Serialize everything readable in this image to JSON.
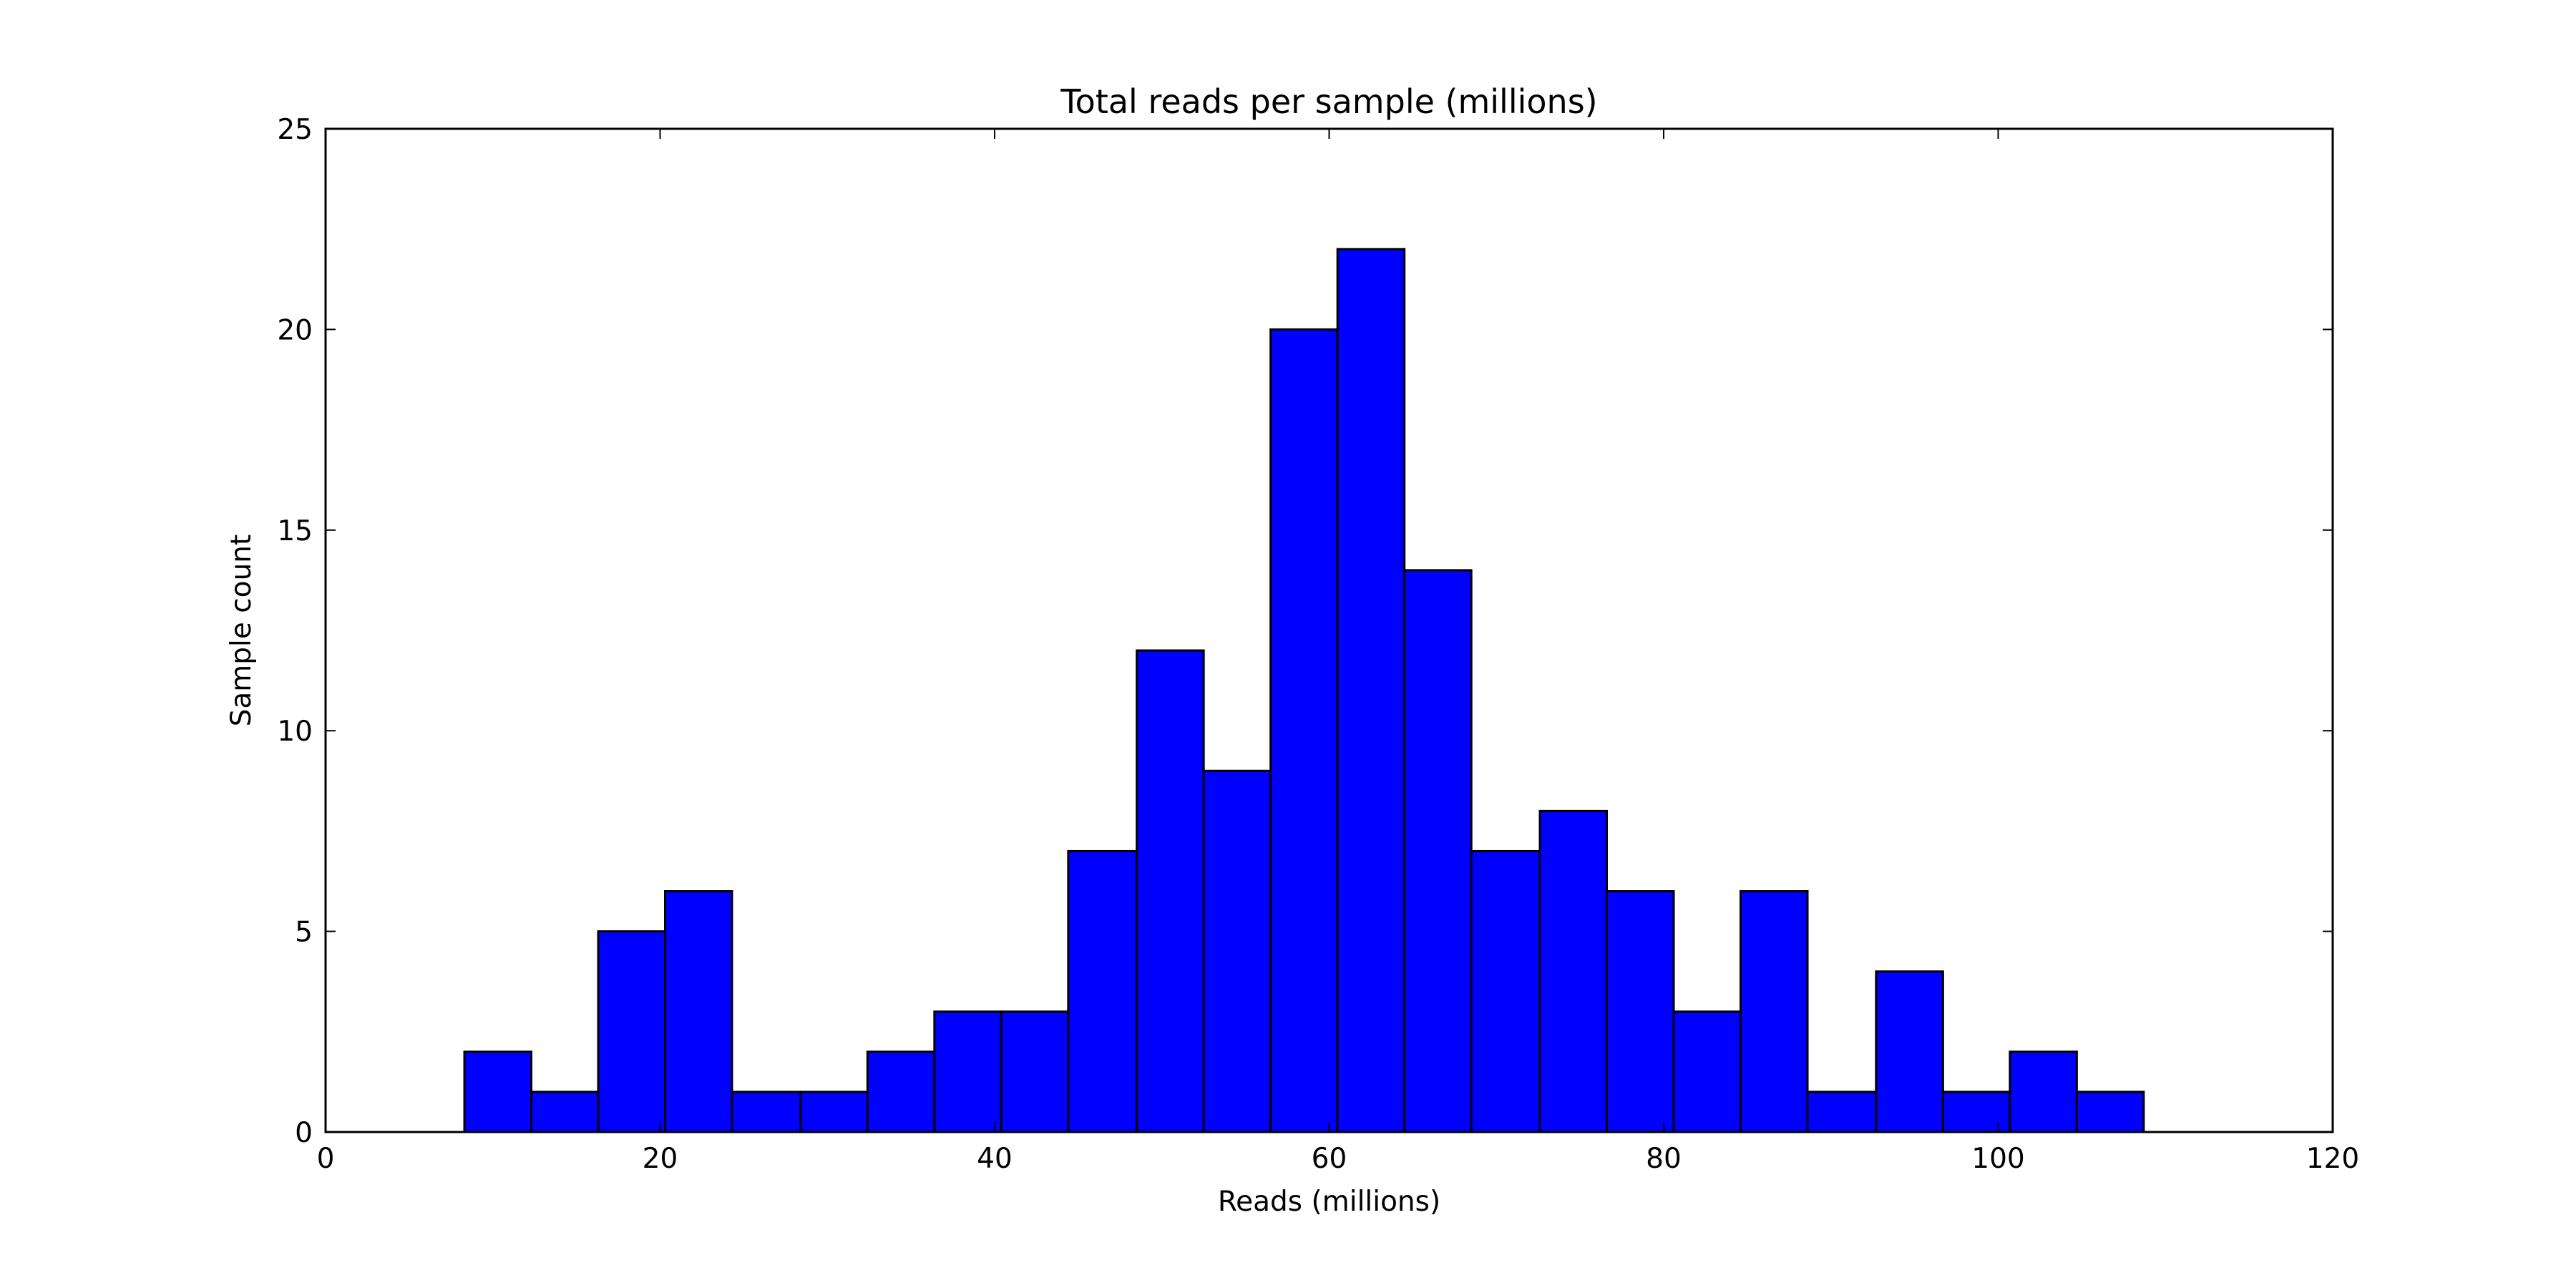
{
  "chart_data": {
    "type": "bar",
    "title": "Total reads per sample (millions)",
    "xlabel": "Reads (millions)",
    "ylabel": "Sample count",
    "xlim": [
      0,
      120
    ],
    "ylim": [
      0,
      25
    ],
    "xticks": [
      0,
      20,
      40,
      60,
      80,
      100,
      120
    ],
    "yticks": [
      0,
      5,
      10,
      15,
      20,
      25
    ],
    "grid": false,
    "bar_color": "#0000ff",
    "edge_color": "#000000",
    "bins": [
      {
        "start": 8.3,
        "end": 12.3,
        "count": 2
      },
      {
        "start": 12.3,
        "end": 16.3,
        "count": 1
      },
      {
        "start": 16.3,
        "end": 20.3,
        "count": 5
      },
      {
        "start": 20.3,
        "end": 24.3,
        "count": 6
      },
      {
        "start": 24.3,
        "end": 28.4,
        "count": 1
      },
      {
        "start": 28.4,
        "end": 32.4,
        "count": 1
      },
      {
        "start": 32.4,
        "end": 36.4,
        "count": 2
      },
      {
        "start": 36.4,
        "end": 40.4,
        "count": 3
      },
      {
        "start": 40.4,
        "end": 44.4,
        "count": 3
      },
      {
        "start": 44.4,
        "end": 48.5,
        "count": 7
      },
      {
        "start": 48.5,
        "end": 52.5,
        "count": 12
      },
      {
        "start": 52.5,
        "end": 56.5,
        "count": 9
      },
      {
        "start": 56.5,
        "end": 60.5,
        "count": 20
      },
      {
        "start": 60.5,
        "end": 64.5,
        "count": 22
      },
      {
        "start": 64.5,
        "end": 68.5,
        "count": 14
      },
      {
        "start": 68.5,
        "end": 72.6,
        "count": 7
      },
      {
        "start": 72.6,
        "end": 76.6,
        "count": 8
      },
      {
        "start": 76.6,
        "end": 80.6,
        "count": 6
      },
      {
        "start": 80.6,
        "end": 84.6,
        "count": 3
      },
      {
        "start": 84.6,
        "end": 88.6,
        "count": 6
      },
      {
        "start": 88.6,
        "end": 92.7,
        "count": 1
      },
      {
        "start": 92.7,
        "end": 96.7,
        "count": 4
      },
      {
        "start": 96.7,
        "end": 100.7,
        "count": 1
      },
      {
        "start": 100.7,
        "end": 104.7,
        "count": 2
      },
      {
        "start": 104.7,
        "end": 108.7,
        "count": 1
      }
    ]
  }
}
